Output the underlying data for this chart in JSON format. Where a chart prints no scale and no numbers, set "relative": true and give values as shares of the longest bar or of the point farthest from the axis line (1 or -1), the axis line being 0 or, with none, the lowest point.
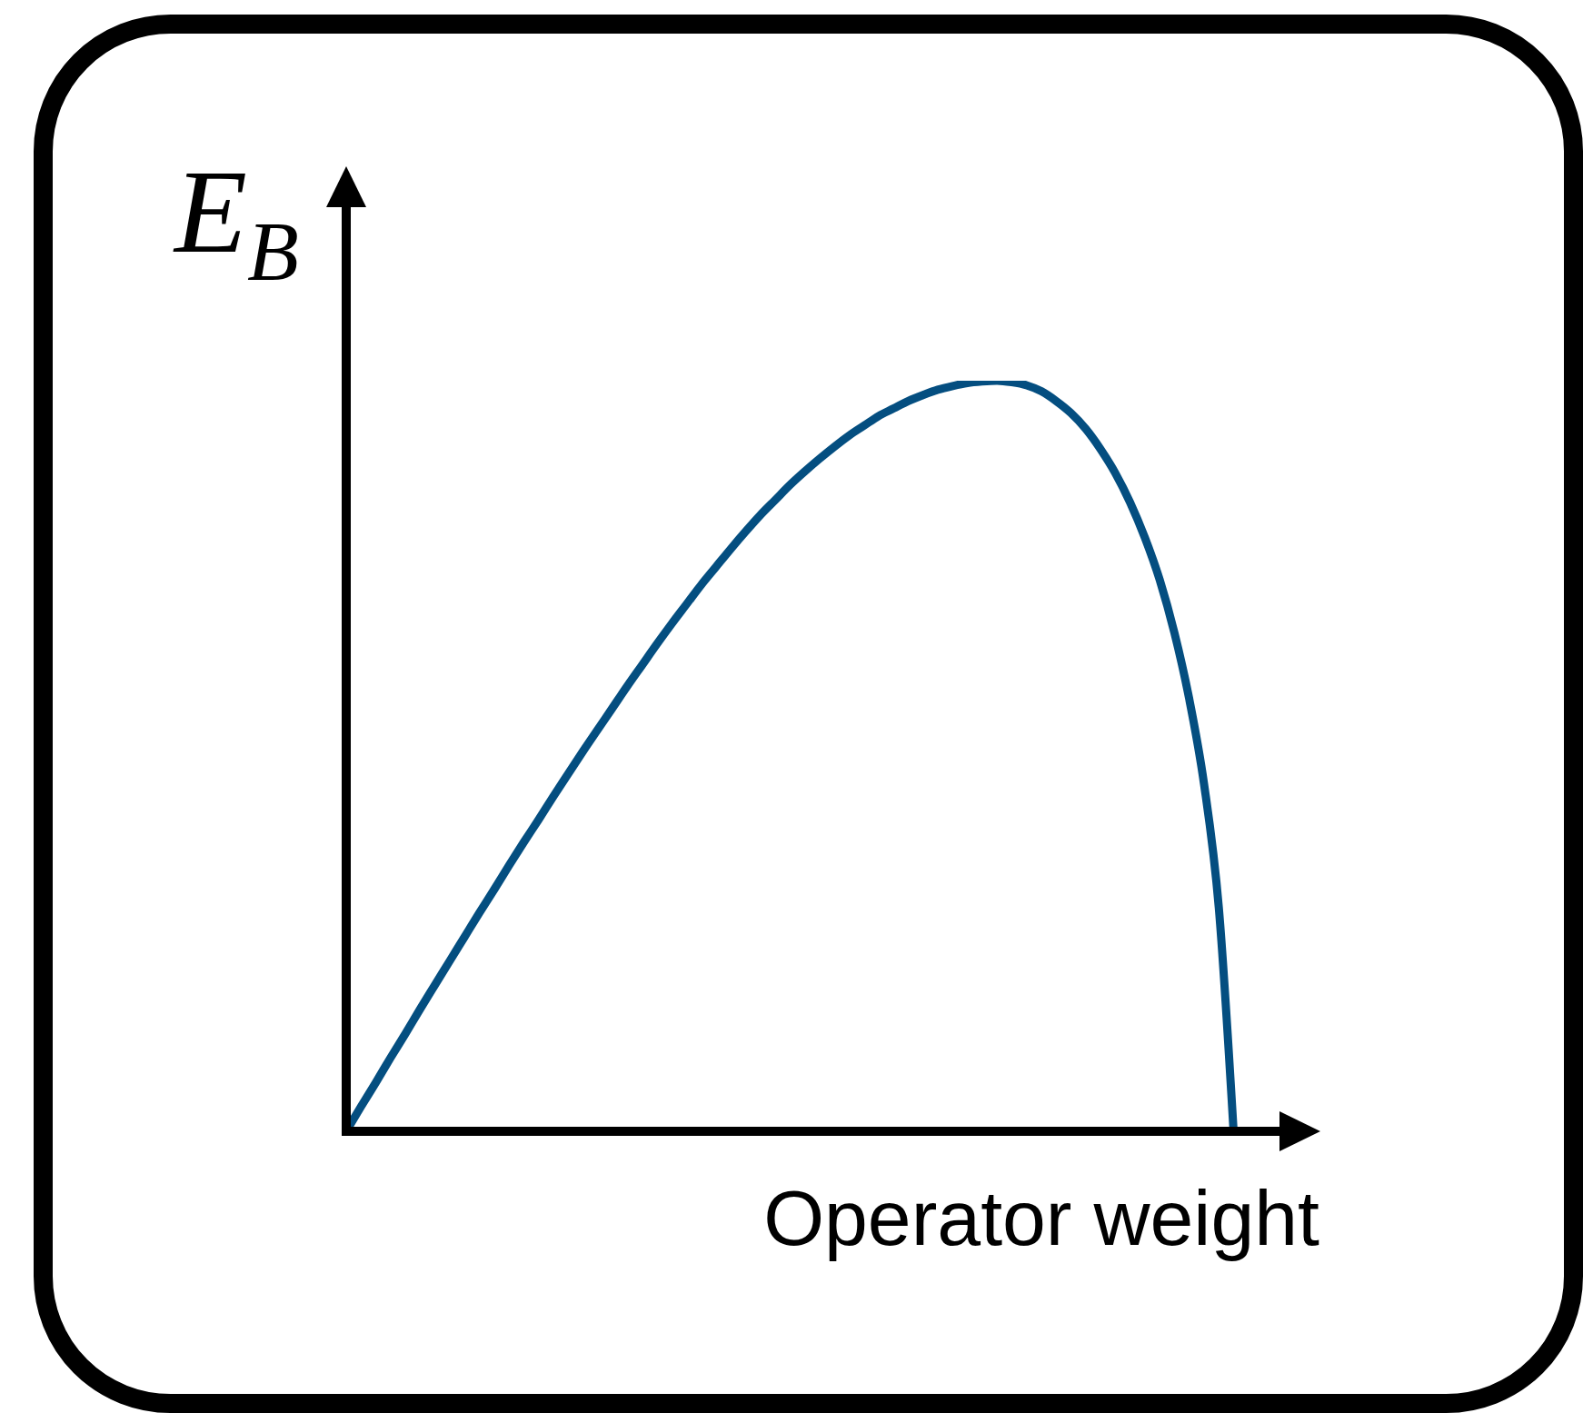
{
  "chart_data": {
    "type": "line",
    "relative": true,
    "xlabel": "Operator weight",
    "ylabel": "E$_{B}$",
    "categories": [
      null,
      null,
      null,
      null,
      null,
      null,
      null,
      null,
      null,
      null,
      null,
      null,
      null,
      null,
      null,
      null,
      null,
      null,
      null,
      null,
      null,
      null,
      null,
      null,
      null,
      null,
      null,
      null,
      null,
      null,
      null,
      null,
      null,
      null,
      null,
      null,
      null,
      null,
      null,
      null,
      null,
      null,
      null,
      null,
      null,
      null,
      null,
      null,
      null,
      null,
      null,
      null,
      null,
      null,
      null,
      null,
      null,
      null,
      null,
      null,
      null
    ],
    "series": [
      {
        "color": "#044e80",
        "values": [
          0,
          0.033,
          0.065,
          0.098,
          0.13,
          0.163,
          0.195,
          0.227,
          0.259,
          0.291,
          0.322,
          0.354,
          0.385,
          0.415,
          0.446,
          0.476,
          0.506,
          0.535,
          0.564,
          0.593,
          0.621,
          0.649,
          0.676,
          0.702,
          0.728,
          0.752,
          0.776,
          0.799,
          0.821,
          0.841,
          0.861,
          0.879,
          0.896,
          0.912,
          0.927,
          0.94,
          0.953,
          0.963,
          0.973,
          0.981,
          0.988,
          0.993,
          0.997,
          0.999,
          1,
          0.998,
          0.994,
          0.986,
          0.973,
          0.957,
          0.936,
          0.909,
          0.877,
          0.838,
          0.791,
          0.735,
          0.664,
          0.576,
          0.463,
          0.298,
          0
        ]
      }
    ],
    "marker": "none",
    "line_style": "solid"
  }
}
